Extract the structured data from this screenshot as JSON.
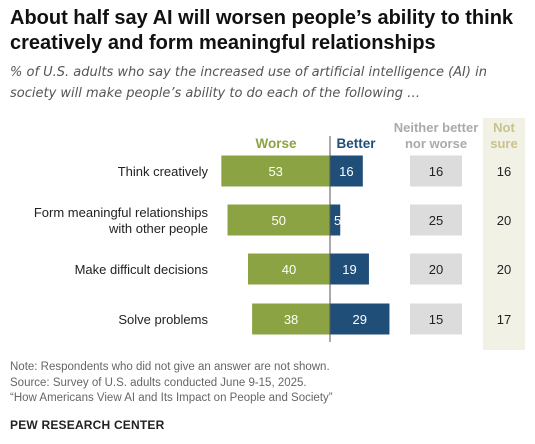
{
  "title": "About half say AI will worsen people’s ability to think creatively and form meaningful relationships",
  "subtitle": "% of U.S. adults who say the increased use of artificial intelligence (AI) in society will make people’s ability to do each of the following …",
  "chart_data": {
    "type": "bar",
    "orientation": "horizontal",
    "layout": "diverging with side columns",
    "categories": [
      "Think creatively",
      "Form meaningful relationships with other people",
      "Make difficult decisions",
      "Solve problems"
    ],
    "category_lines": [
      [
        "Think creatively"
      ],
      [
        "Form meaningful relationships",
        "with other people"
      ],
      [
        "Make difficult decisions"
      ],
      [
        "Solve problems"
      ]
    ],
    "series": [
      {
        "name": "Worse",
        "values": [
          53,
          50,
          40,
          38
        ],
        "color": "#8ca344",
        "direction": "left"
      },
      {
        "name": "Better",
        "values": [
          16,
          5,
          19,
          29
        ],
        "color": "#1f4e79",
        "direction": "right"
      },
      {
        "name": "Neither better nor worse",
        "name_lines": [
          "Neither better",
          "nor worse"
        ],
        "values": [
          16,
          25,
          20,
          15
        ],
        "color": "#dcdcdc",
        "display": "box"
      },
      {
        "name": "Not sure",
        "name_lines": [
          "Not",
          "sure"
        ],
        "values": [
          16,
          20,
          20,
          17
        ],
        "color": "#f2f1e6",
        "label_color": "#c9c28a",
        "display": "column"
      }
    ]
  },
  "notes": {
    "note": "Note: Respondents who did not give an answer are not shown.",
    "source": "Source: Survey of U.S. adults conducted June 9-15, 2025.",
    "report": "“How Americans View AI and Its Impact on People and Society”"
  },
  "brand": "PEW RESEARCH CENTER"
}
